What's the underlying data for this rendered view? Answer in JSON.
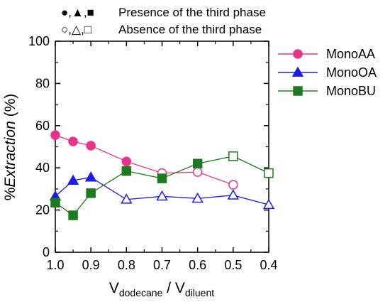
{
  "chart_data": {
    "type": "line",
    "xlabel_main": "V",
    "xlabel_sub1": "dodecane",
    "xlabel_mid": " / V",
    "xlabel_sub2": "diluent",
    "ylabel_prefix": "%",
    "ylabel_italic": "Extraction",
    "ylabel_suffix": " (%)",
    "xlim": [
      1.0,
      0.4
    ],
    "ylim": [
      0,
      100
    ],
    "x_reversed": true,
    "xticks": [
      "1.0",
      "0.9",
      "0.8",
      "0.7",
      "0.6",
      "0.5",
      "0.4"
    ],
    "yticks": [
      "0",
      "20",
      "40",
      "60",
      "80",
      "100"
    ],
    "grid": false,
    "legend_position": "top-right",
    "notes": {
      "presence": "Presence of the third phase",
      "absence": "Absence of the third phase",
      "filled_symbols": "●,▲,■",
      "open_symbols": "○,△,□"
    },
    "series": [
      {
        "name": "MonoAA",
        "color": "#e8338a",
        "marker": "circle",
        "x": [
          1.0,
          0.95,
          0.9,
          0.8,
          0.7,
          0.6,
          0.5
        ],
        "y": [
          55.5,
          52.5,
          50.5,
          43,
          37.5,
          38,
          32
        ],
        "filled": [
          true,
          true,
          true,
          true,
          false,
          false,
          false
        ]
      },
      {
        "name": "MonoOA",
        "color": "#1a1aeb",
        "marker": "triangle",
        "x": [
          1.0,
          0.95,
          0.9,
          0.8,
          0.7,
          0.6,
          0.5,
          0.4
        ],
        "y": [
          26.5,
          34,
          35.5,
          25,
          26.5,
          25.5,
          27,
          22.5
        ],
        "filled": [
          true,
          true,
          true,
          false,
          false,
          false,
          false,
          false
        ]
      },
      {
        "name": "MonoBU",
        "color": "#1e7a1e",
        "marker": "square",
        "x": [
          1.0,
          0.95,
          0.9,
          0.8,
          0.7,
          0.6,
          0.5,
          0.4
        ],
        "y": [
          23.5,
          17.5,
          28,
          38.5,
          35,
          42,
          45.5,
          37.5
        ],
        "filled": [
          true,
          true,
          true,
          true,
          true,
          true,
          false,
          false
        ]
      }
    ]
  }
}
